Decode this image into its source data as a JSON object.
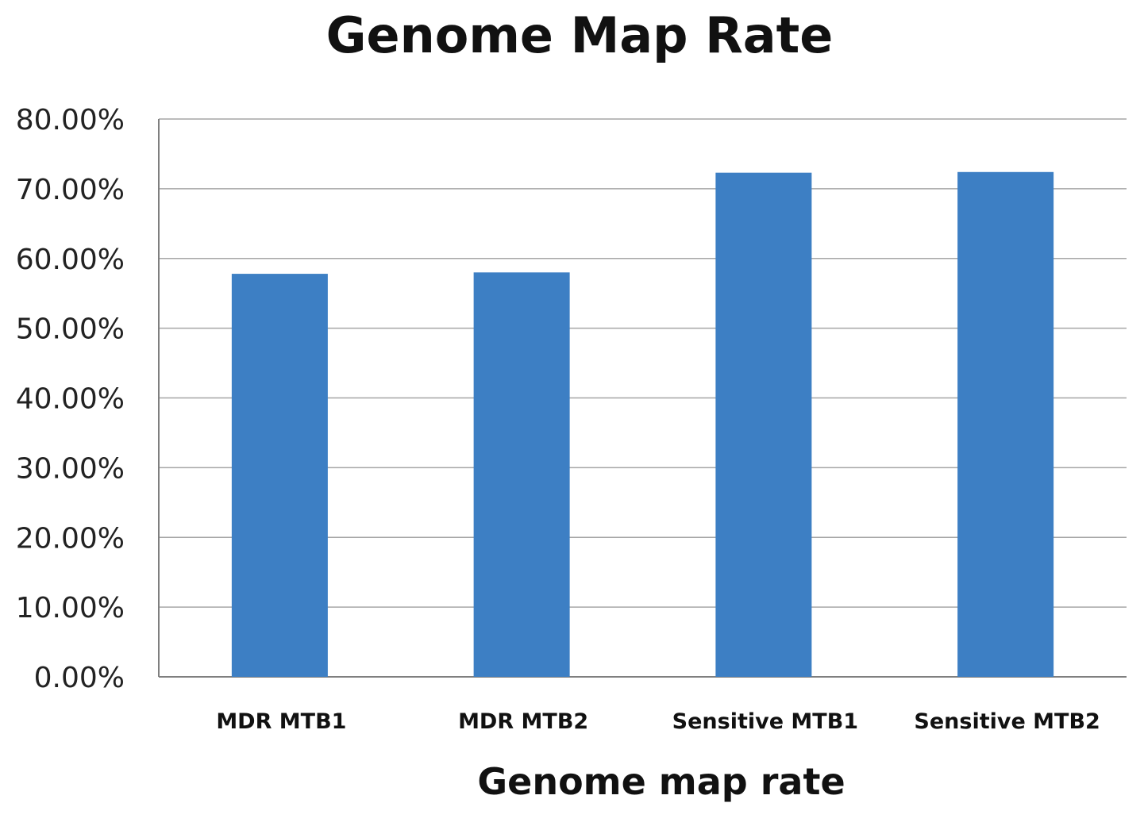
{
  "chart_data": {
    "type": "bar",
    "title": "Genome Map Rate",
    "xlabel": "Genome map rate",
    "ylabel": "",
    "categories": [
      "MDR MTB1",
      "MDR MTB2",
      "Sensitive MTB1",
      "Sensitive MTB2"
    ],
    "values": [
      0.578,
      0.58,
      0.723,
      0.724
    ],
    "ylim": [
      0,
      0.8
    ],
    "y_ticks": [
      0,
      0.1,
      0.2,
      0.3,
      0.4,
      0.5,
      0.6,
      0.7,
      0.8
    ],
    "y_tick_labels": [
      "0.00%",
      "10.00%",
      "20.00%",
      "30.00%",
      "40.00%",
      "50.00%",
      "60.00%",
      "70.00%",
      "80.00%"
    ],
    "grid": true,
    "legend": "none",
    "bar_color": "#3d7fc4",
    "grid_color": "#a6a6a6",
    "axis_color": "#7f7f7f"
  }
}
